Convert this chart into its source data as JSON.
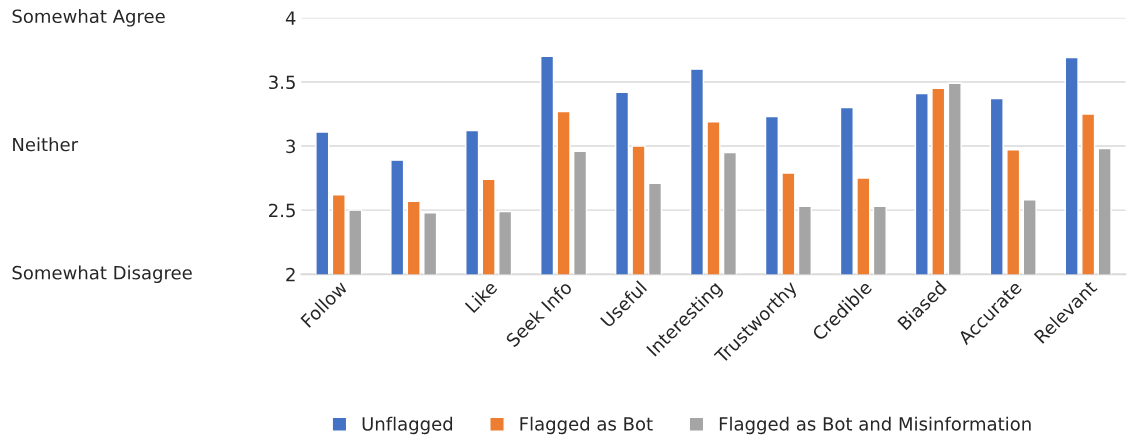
{
  "chart_data": {
    "type": "bar",
    "categories": [
      "Follow",
      null,
      "Like",
      "Seek Info",
      "Useful",
      "Interesting",
      "Trustworthy",
      "Credible",
      "Biased",
      "Accurate",
      "Relevant"
    ],
    "series": [
      {
        "name": "Unflagged",
        "color": "#4472c4",
        "values": [
          3.11,
          2.89,
          3.12,
          3.7,
          3.42,
          3.6,
          3.23,
          3.3,
          3.41,
          3.37,
          3.69
        ]
      },
      {
        "name": "Flagged as Bot",
        "color": "#ed7d31",
        "values": [
          2.62,
          2.57,
          2.74,
          3.27,
          3.0,
          3.19,
          2.79,
          2.75,
          3.45,
          2.97,
          3.25
        ]
      },
      {
        "name": "Flagged as Bot and Misinformation",
        "color": "#a5a5a5",
        "values": [
          2.5,
          2.48,
          2.49,
          2.96,
          2.71,
          2.95,
          2.53,
          2.53,
          3.49,
          2.58,
          2.98
        ]
      }
    ],
    "ylim": [
      2,
      4
    ],
    "yticks": [
      2,
      2.5,
      3,
      3.5,
      4
    ],
    "annotations": [
      "Somewhat Agree",
      "Neither",
      "Somewhat Disagree"
    ],
    "grid": "y",
    "legend": "bottom"
  }
}
